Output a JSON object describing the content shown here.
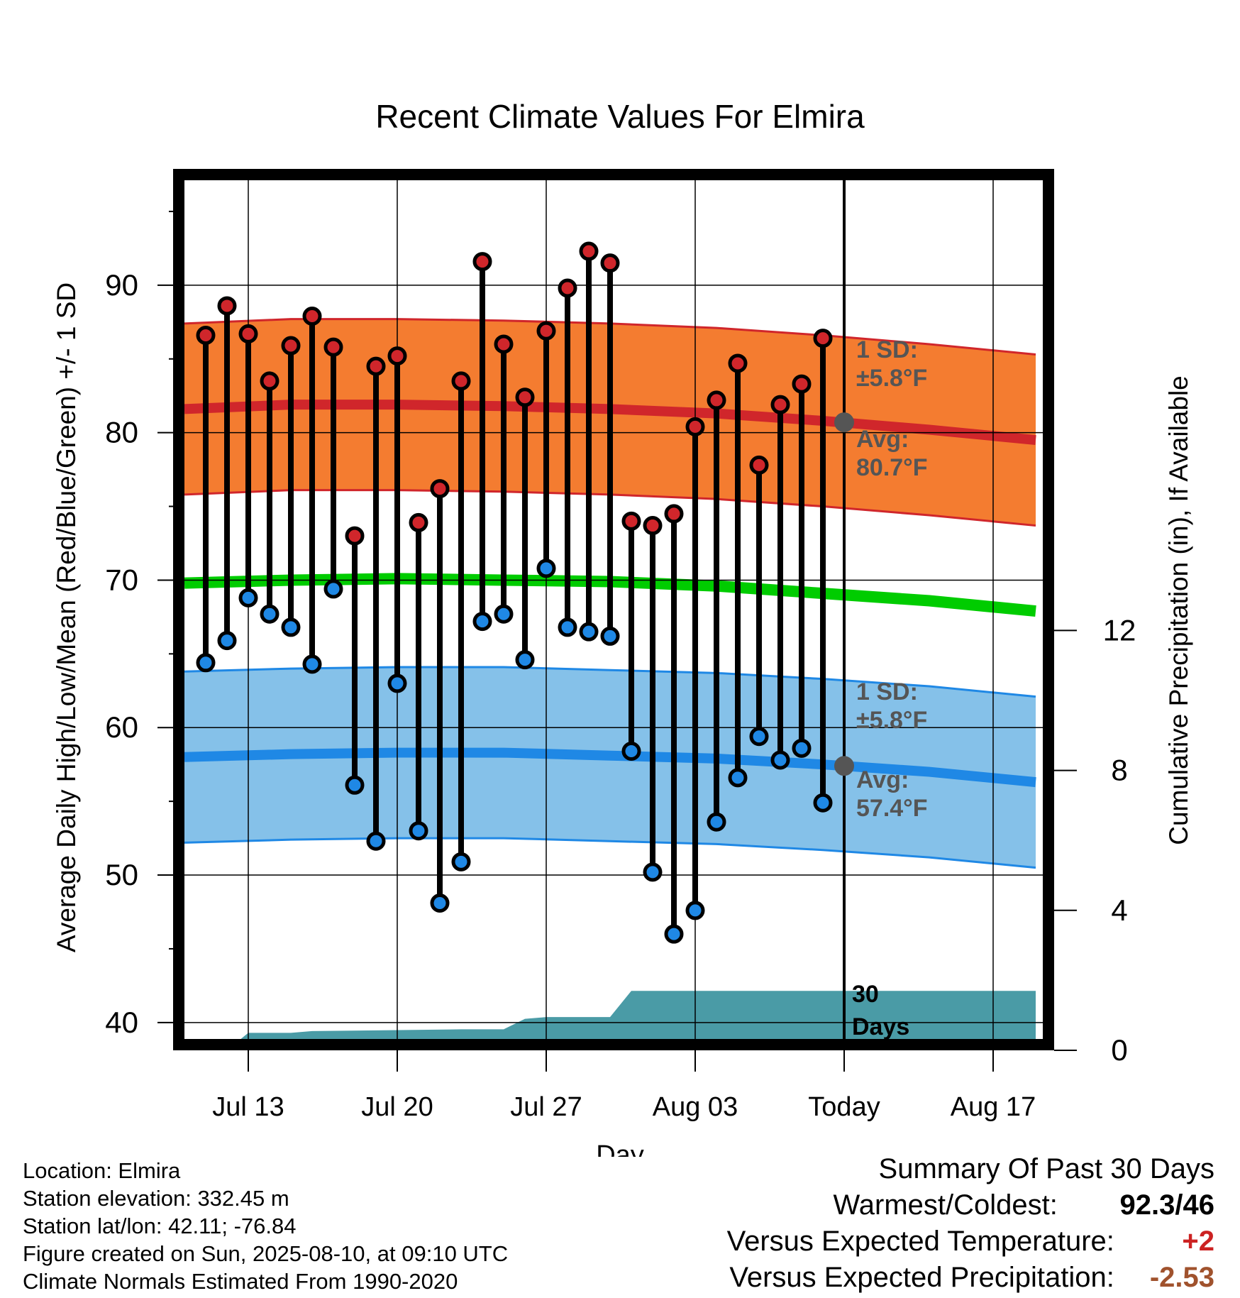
{
  "chart_data": {
    "type": "line",
    "title": "Recent Climate Values For Elmira",
    "xlabel": "Day",
    "ylabel": "Average Daily High/Low/Mean (Red/Blue/Green) +/- 1 SD",
    "y2label": "Cumulative Precipitation (in), If Available",
    "ylim": [
      38.5,
      97.5
    ],
    "y2lim": [
      0,
      20
    ],
    "yticks": [
      40,
      50,
      60,
      70,
      80,
      90
    ],
    "y2ticks": [
      0,
      4,
      8,
      12
    ],
    "x_tick_labels": [
      "Jul 13",
      "Jul 20",
      "Jul 27",
      "Aug 03",
      "Today",
      "Aug 17"
    ],
    "days": [
      "Jul 11",
      "Jul 12",
      "Jul 13",
      "Jul 14",
      "Jul 15",
      "Jul 16",
      "Jul 17",
      "Jul 18",
      "Jul 19",
      "Jul 20",
      "Jul 21",
      "Jul 22",
      "Jul 23",
      "Jul 24",
      "Jul 25",
      "Jul 26",
      "Jul 27",
      "Jul 28",
      "Jul 29",
      "Jul 30",
      "Jul 31",
      "Aug 01",
      "Aug 02",
      "Aug 03",
      "Aug 04",
      "Aug 05",
      "Aug 06",
      "Aug 07",
      "Aug 08",
      "Aug 09"
    ],
    "series": [
      {
        "name": "High",
        "color": "#d0262b",
        "values": [
          86.6,
          88.6,
          86.7,
          83.5,
          85.9,
          87.9,
          85.8,
          73.0,
          84.5,
          85.2,
          73.9,
          76.2,
          83.5,
          91.6,
          86.0,
          82.4,
          86.9,
          89.8,
          92.3,
          91.5,
          74.0,
          73.7,
          74.5,
          80.4,
          82.2,
          84.7,
          77.8,
          81.9,
          83.3,
          86.4
        ]
      },
      {
        "name": "Low",
        "color": "#1f88e5",
        "values": [
          64.4,
          65.9,
          68.8,
          67.7,
          66.8,
          64.3,
          69.4,
          56.1,
          52.3,
          63.0,
          53.0,
          48.1,
          50.9,
          67.2,
          67.7,
          64.6,
          70.8,
          66.8,
          66.5,
          66.2,
          58.4,
          50.2,
          46.0,
          47.6,
          53.6,
          56.6,
          59.4,
          57.8,
          58.6,
          54.9
        ]
      },
      {
        "name": "Normal High",
        "color": "#d0262b",
        "x": [
          "Jul 10",
          "Jul 15",
          "Jul 20",
          "Jul 25",
          "Jul 30",
          "Aug 04",
          "Aug 09",
          "Aug 14",
          "Aug 19"
        ],
        "values": [
          81.6,
          81.9,
          81.9,
          81.8,
          81.6,
          81.3,
          80.8,
          80.2,
          79.5
        ],
        "sd": 5.8
      },
      {
        "name": "Normal Low",
        "color": "#1f88e5",
        "x": [
          "Jul 10",
          "Jul 15",
          "Jul 20",
          "Jul 25",
          "Jul 30",
          "Aug 04",
          "Aug 09",
          "Aug 14",
          "Aug 19"
        ],
        "values": [
          58.0,
          58.2,
          58.3,
          58.3,
          58.1,
          57.9,
          57.5,
          57.0,
          56.3
        ],
        "sd": 5.8
      },
      {
        "name": "Normal Mean",
        "color": "#00cc00",
        "x": [
          "Jul 10",
          "Jul 15",
          "Jul 20",
          "Jul 25",
          "Jul 30",
          "Aug 04",
          "Aug 09",
          "Aug 14",
          "Aug 19"
        ],
        "values": [
          69.8,
          70.0,
          70.1,
          70.0,
          69.9,
          69.6,
          69.1,
          68.6,
          67.9
        ]
      },
      {
        "name": "Cumulative Precipitation",
        "color": "#4a9ba6",
        "x": [
          "Jul 10",
          "Jul 11",
          "Jul 12",
          "Jul 13",
          "Jul 14",
          "Jul 15",
          "Jul 16",
          "Jul 23",
          "Jul 24",
          "Jul 25",
          "Jul 26",
          "Jul 27",
          "Jul 28",
          "Jul 29",
          "Jul 30",
          "Jul 31",
          "Aug 19"
        ],
        "values": [
          0,
          0,
          0,
          0.5,
          0.5,
          0.5,
          0.55,
          0.6,
          0.6,
          0.6,
          0.9,
          0.95,
          0.95,
          0.95,
          0.95,
          1.7,
          1.7
        ]
      }
    ],
    "annotations": {
      "high_sd": "1 SD:\n±5.8°F",
      "high_avg": "Avg:\n80.7°F",
      "low_sd": "1 SD:\n±5.8°F",
      "low_avg": "Avg:\n57.4°F",
      "period": "30\nDays"
    },
    "today_values": {
      "high_avg": 80.7,
      "low_avg": 57.4
    },
    "grid": true,
    "legend": "none"
  },
  "footer": {
    "location": "Location: Elmira",
    "elevation": "Station elevation: 332.45 m",
    "latlon": "Station lat/lon: 42.11; -76.84",
    "created": "Figure created on Sun, 2025-08-10, at 09:10 UTC",
    "normals": "Climate Normals Estimated From 1990-2020"
  },
  "summary": {
    "heading": "Summary Of Past 30 Days",
    "warmest_label": "Warmest/Coldest:",
    "warmest_value": "92.3",
    "sep": "/",
    "coldest_value": "46",
    "temp_label": "Versus Expected Temperature:",
    "temp_value": "+2",
    "temp_color": "#cc2222",
    "precip_label": "Versus Expected Precipitation:",
    "precip_value": "-2.53",
    "precip_color": "#a0522d"
  }
}
